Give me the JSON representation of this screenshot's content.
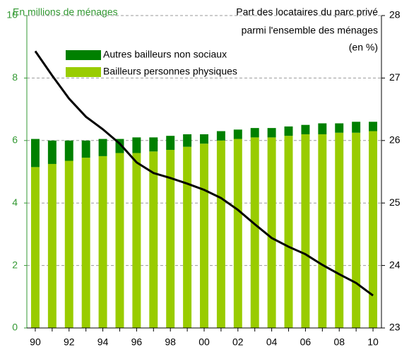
{
  "chart_data": {
    "type": "bar",
    "stacked": true,
    "y_label": "En millions de ménages",
    "y2_label": [
      "Part des locataires du parc privé",
      "parmi l'ensemble des ménages",
      "(en %)"
    ],
    "categories": [
      "90",
      null,
      "92",
      null,
      "94",
      null,
      "96",
      null,
      "98",
      null,
      "00",
      null,
      "02",
      null,
      "04",
      null,
      "06",
      null,
      "08",
      null,
      "10"
    ],
    "series": [
      {
        "name": "Bailleurs personnes physiques",
        "color": "#99cc00",
        "values": [
          5.15,
          5.25,
          5.35,
          5.45,
          5.5,
          5.6,
          5.6,
          5.65,
          5.7,
          5.8,
          5.9,
          6.0,
          6.05,
          6.1,
          6.1,
          6.15,
          6.2,
          6.2,
          6.25,
          6.25,
          6.3
        ]
      },
      {
        "name": "Autres bailleurs non sociaux",
        "color": "#008000",
        "values": [
          0.9,
          0.75,
          0.65,
          0.55,
          0.55,
          0.45,
          0.5,
          0.45,
          0.45,
          0.4,
          0.3,
          0.3,
          0.3,
          0.3,
          0.3,
          0.3,
          0.3,
          0.35,
          0.3,
          0.35,
          0.3
        ]
      },
      {
        "type": "line",
        "axis": "y2",
        "color": "#000000",
        "values": [
          27.43,
          27.04,
          26.67,
          26.38,
          26.18,
          25.95,
          25.65,
          25.48,
          25.4,
          25.31,
          25.21,
          25.08,
          24.89,
          24.66,
          24.44,
          24.3,
          24.18,
          24.01,
          23.86,
          23.72,
          23.52
        ]
      }
    ],
    "ylim": [
      0,
      10
    ],
    "yticks": [
      0,
      2,
      4,
      6,
      8,
      10
    ],
    "y2lim": [
      23,
      28
    ],
    "y2ticks": [
      23,
      24,
      25,
      26,
      27,
      28
    ],
    "grid": true,
    "axis_color": "#339933"
  }
}
